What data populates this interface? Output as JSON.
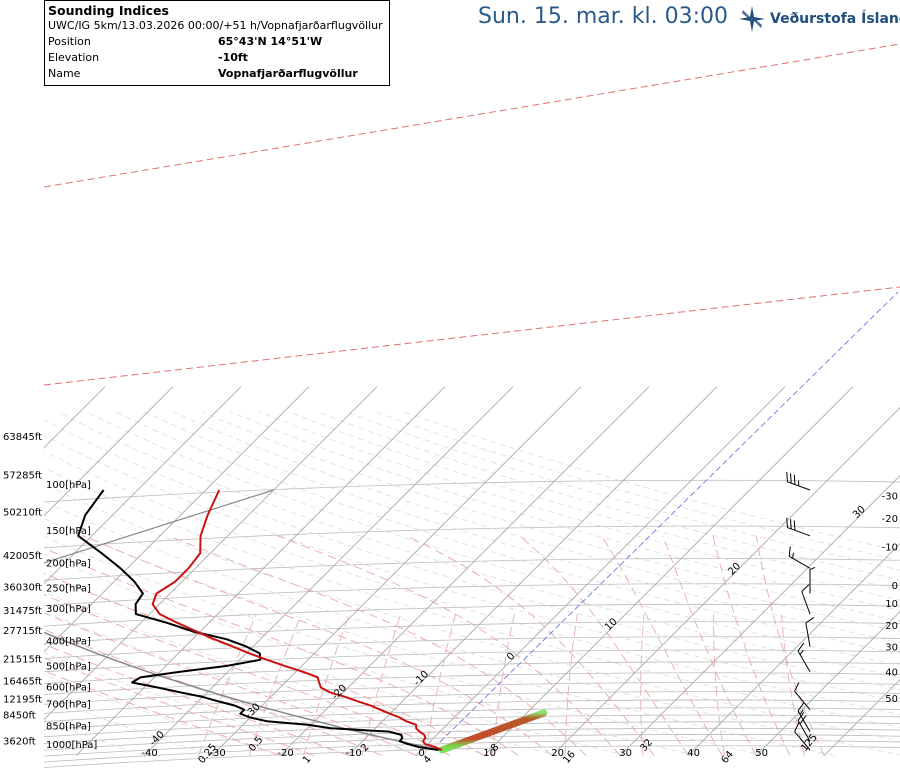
{
  "header": {
    "valid_time": "Sun. 15. mar. kl. 03:00",
    "logo_text": "Veðurstofa Íslands"
  },
  "info_box": {
    "title": "Sounding Indices",
    "model_run": "UWC/IG 5km/13.03.2026 00:00/+51 h/Vopnafjarðarflugvöllur",
    "rows": [
      {
        "label": "Position",
        "value": "65°43'N 14°51'W"
      },
      {
        "label": "Elevation",
        "value": "-10ft"
      },
      {
        "label": "Name",
        "value": "Vopnafjarðarflugvöllur"
      }
    ]
  },
  "chart_data": {
    "type": "line",
    "diagram": "skew-T log-P",
    "pressure_range_hpa": [
      1050,
      100
    ],
    "temperature_range_c": [
      -40,
      50
    ],
    "pressure_levels": [
      {
        "p": 1000,
        "label": "1000[hPa]"
      },
      {
        "p": 850,
        "label": "850[hPa]"
      },
      {
        "p": 700,
        "label": "700[hPa]"
      },
      {
        "p": 600,
        "label": "600[hPa]"
      },
      {
        "p": 500,
        "label": "500[hPa]"
      },
      {
        "p": 400,
        "label": "400[hPa]"
      },
      {
        "p": 300,
        "label": "300[hPa]"
      },
      {
        "p": 250,
        "label": "250[hPa]"
      },
      {
        "p": 200,
        "label": "200[hPa]"
      },
      {
        "p": 150,
        "label": "150[hPa]"
      },
      {
        "p": 100,
        "label": "100[hPa]"
      }
    ],
    "height_ticks": [
      {
        "p": 920,
        "label": "3620ft"
      },
      {
        "p": 730,
        "label": "8450ft"
      },
      {
        "p": 635,
        "label": "12195ft"
      },
      {
        "p": 540,
        "label": "16465ft"
      },
      {
        "p": 445,
        "label": "21515ft"
      },
      {
        "p": 345,
        "label": "27715ft"
      },
      {
        "p": 290,
        "label": "31475ft"
      },
      {
        "p": 235,
        "label": "36030ft"
      },
      {
        "p": 178,
        "label": "42005ft"
      },
      {
        "p": 121,
        "label": "50210ft"
      },
      {
        "p": 87,
        "label": "57285ft"
      },
      {
        "p": 62,
        "label": "63845ft"
      }
    ],
    "bottom_ticks": [
      {
        "t": -40,
        "label": "-40"
      },
      {
        "t": -30,
        "label": "-30"
      },
      {
        "t": -20,
        "label": "-20"
      },
      {
        "t": -10,
        "label": "-10"
      },
      {
        "t": 0,
        "label": "0"
      },
      {
        "t": 10,
        "label": "10"
      },
      {
        "t": 20,
        "label": "20"
      },
      {
        "t": 30,
        "label": "30"
      },
      {
        "t": 40,
        "label": "40"
      },
      {
        "t": 50,
        "label": "50"
      }
    ],
    "right_ticks": [
      {
        "p": 105,
        "label": "-30"
      },
      {
        "p": 128,
        "label": "-20"
      },
      {
        "p": 165,
        "label": "-10"
      },
      {
        "p": 232,
        "label": "0"
      },
      {
        "p": 272,
        "label": "10"
      },
      {
        "p": 330,
        "label": "20"
      },
      {
        "p": 400,
        "label": "30"
      },
      {
        "p": 500,
        "label": "40"
      },
      {
        "p": 630,
        "label": "50"
      }
    ],
    "mixing_ratio_labels": [
      "0.25",
      "0.5",
      "1",
      "2",
      "4",
      "8",
      "16",
      "32",
      "64",
      "125"
    ],
    "isotherm_labels": [
      {
        "text": "30",
        "p": 124
      },
      {
        "text": "20",
        "p": 205
      },
      {
        "text": "10",
        "p": 335
      },
      {
        "text": "0",
        "p": 445
      },
      {
        "text": "-10",
        "p": 540
      },
      {
        "text": "-20",
        "p": 610
      },
      {
        "text": "-30",
        "p": 720
      },
      {
        "text": "-40",
        "p": 920
      }
    ],
    "temperature_profile": [
      {
        "p": 1000,
        "t": 3.0
      },
      {
        "p": 975,
        "t": 1.6
      },
      {
        "p": 950,
        "t": -0.3
      },
      {
        "p": 925,
        "t": -1.1
      },
      {
        "p": 900,
        "t": -1.2
      },
      {
        "p": 875,
        "t": -1.8
      },
      {
        "p": 850,
        "t": -3.0
      },
      {
        "p": 825,
        "t": -4.0
      },
      {
        "p": 800,
        "t": -4.5
      },
      {
        "p": 775,
        "t": -6.5
      },
      {
        "p": 750,
        "t": -8.0
      },
      {
        "p": 725,
        "t": -10.0
      },
      {
        "p": 700,
        "t": -12.0
      },
      {
        "p": 675,
        "t": -14.0
      },
      {
        "p": 650,
        "t": -16.5
      },
      {
        "p": 625,
        "t": -19.0
      },
      {
        "p": 600,
        "t": -22.0
      },
      {
        "p": 575,
        "t": -24.0
      },
      {
        "p": 550,
        "t": -25.0
      },
      {
        "p": 525,
        "t": -26.0
      },
      {
        "p": 500,
        "t": -29.0
      },
      {
        "p": 475,
        "t": -32.5
      },
      {
        "p": 450,
        "t": -36.0
      },
      {
        "p": 425,
        "t": -39.5
      },
      {
        "p": 400,
        "t": -43.0
      },
      {
        "p": 375,
        "t": -46.8
      },
      {
        "p": 350,
        "t": -50.5
      },
      {
        "p": 325,
        "t": -54.5
      },
      {
        "p": 300,
        "t": -58.5
      },
      {
        "p": 275,
        "t": -61.0
      },
      {
        "p": 250,
        "t": -62.0
      },
      {
        "p": 225,
        "t": -61.0
      },
      {
        "p": 200,
        "t": -61.0
      },
      {
        "p": 175,
        "t": -61.5
      },
      {
        "p": 150,
        "t": -64.0
      },
      {
        "p": 125,
        "t": -66.0
      },
      {
        "p": 100,
        "t": -68.0
      }
    ],
    "dewpoint_profile": [
      {
        "p": 1000,
        "t": 2.5
      },
      {
        "p": 975,
        "t": -0.8
      },
      {
        "p": 950,
        "t": -2.8
      },
      {
        "p": 925,
        "t": -4.5
      },
      {
        "p": 900,
        "t": -4.6
      },
      {
        "p": 875,
        "t": -5.2
      },
      {
        "p": 850,
        "t": -7.5
      },
      {
        "p": 825,
        "t": -16.5
      },
      {
        "p": 800,
        "t": -20.5
      },
      {
        "p": 775,
        "t": -27.0
      },
      {
        "p": 750,
        "t": -30.0
      },
      {
        "p": 725,
        "t": -32.0
      },
      {
        "p": 700,
        "t": -32.0
      },
      {
        "p": 675,
        "t": -34.0
      },
      {
        "p": 650,
        "t": -37.0
      },
      {
        "p": 625,
        "t": -40.0
      },
      {
        "p": 600,
        "t": -44.0
      },
      {
        "p": 575,
        "t": -48.0
      },
      {
        "p": 550,
        "t": -52.5
      },
      {
        "p": 525,
        "t": -52.0
      },
      {
        "p": 500,
        "t": -47.0
      },
      {
        "p": 475,
        "t": -41.0
      },
      {
        "p": 450,
        "t": -37.0
      },
      {
        "p": 425,
        "t": -38.0
      },
      {
        "p": 400,
        "t": -41.0
      },
      {
        "p": 375,
        "t": -45.0
      },
      {
        "p": 350,
        "t": -51.0
      },
      {
        "p": 325,
        "t": -56.0
      },
      {
        "p": 300,
        "t": -62.0
      },
      {
        "p": 275,
        "t": -63.5
      },
      {
        "p": 250,
        "t": -64.0
      },
      {
        "p": 225,
        "t": -67.0
      },
      {
        "p": 200,
        "t": -71.0
      },
      {
        "p": 175,
        "t": -76.0
      },
      {
        "p": 150,
        "t": -82.0
      },
      {
        "p": 125,
        "t": -84.0
      },
      {
        "p": 100,
        "t": -85.0
      }
    ],
    "parcel_profile": [
      {
        "p": 1000,
        "t": 3.0
      },
      {
        "p": 975,
        "t": 0.4
      },
      {
        "p": 950,
        "t": -2.1
      },
      {
        "p": 925,
        "t": -4.6
      },
      {
        "p": 900,
        "t": -7.1
      },
      {
        "p": 875,
        "t": -9.6
      },
      {
        "p": 850,
        "t": -12.1
      },
      {
        "p": 825,
        "t": -14.6
      },
      {
        "p": 800,
        "t": -17.1
      },
      {
        "p": 775,
        "t": -19.7
      },
      {
        "p": 750,
        "t": -22.4
      },
      {
        "p": 725,
        "t": -25.1
      },
      {
        "p": 700,
        "t": -27.9
      },
      {
        "p": 675,
        "t": -30.7
      },
      {
        "p": 650,
        "t": -33.5
      },
      {
        "p": 625,
        "t": -36.4
      },
      {
        "p": 600,
        "t": -39.3
      },
      {
        "p": 575,
        "t": -42.3
      },
      {
        "p": 550,
        "t": -45.4
      },
      {
        "p": 525,
        "t": -48.6
      },
      {
        "p": 500,
        "t": -51.8
      },
      {
        "p": 475,
        "t": -55.1
      },
      {
        "p": 450,
        "t": -58.5
      },
      {
        "p": 425,
        "t": -62.0
      },
      {
        "p": 400,
        "t": -65.6
      },
      {
        "p": 375,
        "t": -69.4
      },
      {
        "p": 350,
        "t": -73.3
      },
      {
        "p": 325,
        "t": -77.4
      },
      {
        "p": 300,
        "t": -81.7
      },
      {
        "p": 275,
        "t": -86.2
      },
      {
        "p": 250,
        "t": -90.0
      },
      {
        "p": 240,
        "t": -91.3
      }
    ],
    "parcel_continuation_line": [
      {
        "p": 240,
        "t": -91.3
      },
      {
        "p": 100,
        "t": -60.0
      }
    ],
    "inversion_band": [
      {
        "p": 1000,
        "t": 3.0
      },
      {
        "p": 720,
        "t": 12.5
      }
    ],
    "wind_barbs": [
      {
        "p": 1000,
        "dir": 320,
        "kt": 10
      },
      {
        "p": 925,
        "dir": 330,
        "kt": 20
      },
      {
        "p": 850,
        "dir": 330,
        "kt": 15
      },
      {
        "p": 700,
        "dir": 320,
        "kt": 10
      },
      {
        "p": 500,
        "dir": 330,
        "kt": 15
      },
      {
        "p": 400,
        "dir": 350,
        "kt": 10
      },
      {
        "p": 300,
        "dir": 340,
        "kt": 10
      },
      {
        "p": 250,
        "dir": 360,
        "kt": 5
      },
      {
        "p": 200,
        "dir": 300,
        "kt": 15
      },
      {
        "p": 150,
        "dir": 290,
        "kt": 30
      },
      {
        "p": 100,
        "dir": 290,
        "kt": 35
      }
    ],
    "grid": true,
    "colors": {
      "temperature": "#cc1111",
      "dewpoint": "#000000",
      "parcel": "#888888",
      "isobar": "#bbbbbb",
      "isotherm": "#aaaaaa",
      "dry_adiabat": "#dddddd",
      "moist_adiabat": "#e8a9a9",
      "mixing_ratio": "#e8b0b0",
      "tropopause": "#e07070",
      "zero_isotherm": "#7777dd",
      "header_text": "#2a5a8a",
      "logo": "#1f4e7a"
    }
  }
}
